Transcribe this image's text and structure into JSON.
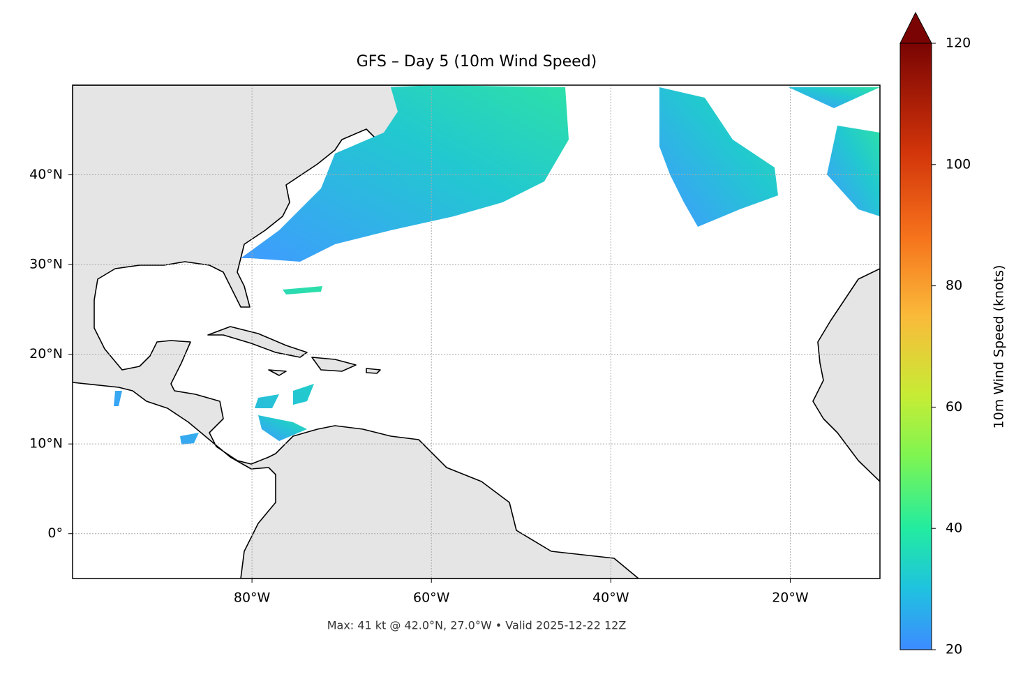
{
  "chart_data": {
    "type": "map",
    "title": "GFS – Day 5 (10m Wind Speed)",
    "xlim": [
      -100,
      -10
    ],
    "ylim": [
      -5,
      50
    ],
    "xticks": [
      {
        "value": -80,
        "label": "80°W"
      },
      {
        "value": -60,
        "label": "60°W"
      },
      {
        "value": -40,
        "label": "40°W"
      },
      {
        "value": -20,
        "label": "20°W"
      }
    ],
    "yticks": [
      {
        "value": 0,
        "label": "0°"
      },
      {
        "value": 10,
        "label": "10°N"
      },
      {
        "value": 20,
        "label": "20°N"
      },
      {
        "value": 30,
        "label": "30°N"
      },
      {
        "value": 40,
        "label": "40°N"
      }
    ],
    "grid": true,
    "colorbar": {
      "label": "10m Wind Speed (knots)",
      "lim": [
        20,
        120
      ],
      "ticks": [
        20,
        40,
        60,
        80,
        100,
        120
      ]
    },
    "footnote": "Max: 41 kt @ 42.0°N, 27.0°W • Valid 2025-12-22 12Z"
  }
}
